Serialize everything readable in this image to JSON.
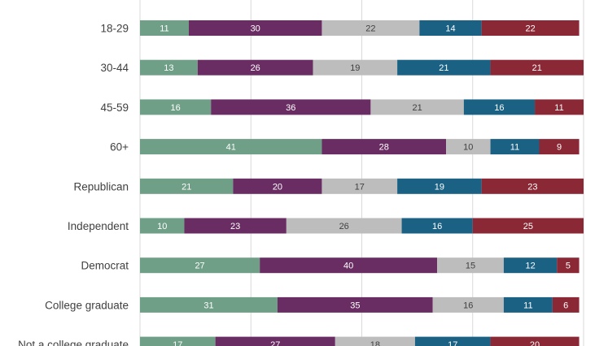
{
  "chart_data": {
    "type": "bar",
    "orientation": "horizontal",
    "stacked": true,
    "title": "",
    "xlabel": "",
    "ylabel": "",
    "xlim": [
      0,
      100
    ],
    "grid": true,
    "categories": [
      "18-29",
      "30-44",
      "45-59",
      "60+",
      "Republican",
      "Independent",
      "Democrat",
      "College graduate",
      "Not a college graduate"
    ],
    "series": [
      {
        "color": "#6f9f87",
        "label_color": "#ffffff",
        "values": [
          11,
          13,
          16,
          41,
          21,
          10,
          27,
          31,
          17
        ]
      },
      {
        "color": "#6a2d63",
        "label_color": "#ffffff",
        "values": [
          30,
          26,
          36,
          28,
          20,
          23,
          40,
          35,
          27
        ]
      },
      {
        "color": "#bdbdbd",
        "label_color": "#404040",
        "values": [
          22,
          19,
          21,
          10,
          17,
          26,
          15,
          16,
          18
        ]
      },
      {
        "color": "#1b6184",
        "label_color": "#ffffff",
        "values": [
          14,
          21,
          16,
          11,
          19,
          16,
          12,
          11,
          17
        ]
      },
      {
        "color": "#8b2835",
        "label_color": "#ffffff",
        "values": [
          22,
          21,
          11,
          9,
          23,
          25,
          5,
          6,
          20
        ]
      }
    ]
  }
}
